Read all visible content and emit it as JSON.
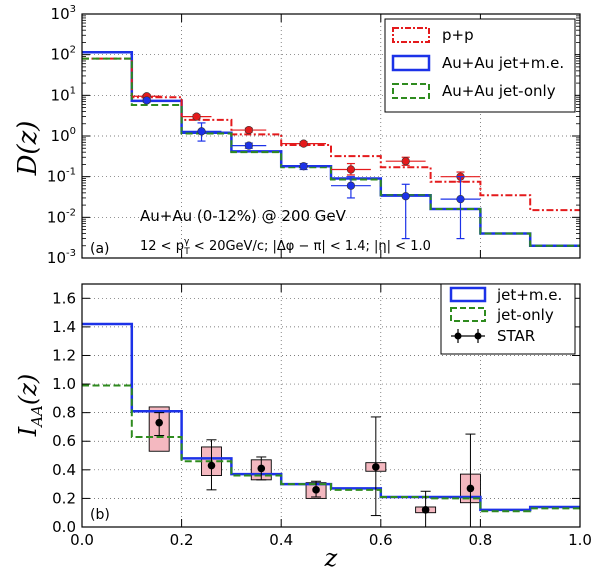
{
  "chart_data": [
    {
      "type": "line",
      "panel_tag": "(a)",
      "ylabel": "D(z)",
      "yscale": "log",
      "ylim": [
        0.001,
        1000
      ],
      "xlim": [
        0.0,
        1.0
      ],
      "y_tick_labels": [
        "10^-3",
        "10^-2",
        "10^-1",
        "10^0",
        "10^1",
        "10^2",
        "10^3"
      ],
      "grid": true,
      "legend_position": "top-right",
      "annotations": [
        "Au+Au (0-12%) @ 200 GeV",
        "12 < p_T^γ < 20GeV/c; |Δφ − π| < 1.4; |η| < 1.0"
      ],
      "bin_edges": [
        0.0,
        0.1,
        0.2,
        0.3,
        0.4,
        0.5,
        0.6,
        0.7,
        0.8,
        0.9,
        1.0
      ],
      "series": [
        {
          "name": "p+p",
          "style": "dash-dot",
          "color": "#e41a1c",
          "values": [
            80,
            9.0,
            2.5,
            1.1,
            0.6,
            0.32,
            0.17,
            0.075,
            0.035,
            0.015
          ]
        },
        {
          "name": "Au+Au jet+m.e.",
          "style": "solid",
          "color": "#1c32e8",
          "values": [
            115,
            7.3,
            1.2,
            0.42,
            0.18,
            0.09,
            0.035,
            0.016,
            0.004,
            0.002
          ]
        },
        {
          "name": "Au+Au jet-only",
          "style": "dashed",
          "color": "#2e8b1e",
          "values": [
            80,
            5.8,
            1.15,
            0.4,
            0.17,
            0.085,
            0.035,
            0.016,
            0.004,
            0.002
          ]
        }
      ],
      "points": [
        {
          "name": "p+p data",
          "color": "#e41a1c",
          "data": [
            {
              "x": 0.13,
              "y": 9.5,
              "xerr": 0.03,
              "ylo": 8.5,
              "yhi": 10.5
            },
            {
              "x": 0.23,
              "y": 3.0,
              "xerr": 0.03,
              "ylo": 2.7,
              "yhi": 3.3
            },
            {
              "x": 0.335,
              "y": 1.4,
              "xerr": 0.035,
              "ylo": 1.25,
              "yhi": 1.55
            },
            {
              "x": 0.445,
              "y": 0.65,
              "xerr": 0.045,
              "ylo": 0.58,
              "yhi": 0.72
            },
            {
              "x": 0.54,
              "y": 0.15,
              "xerr": 0.04,
              "ylo": 0.11,
              "yhi": 0.21
            },
            {
              "x": 0.65,
              "y": 0.24,
              "xerr": 0.04,
              "ylo": 0.19,
              "yhi": 0.3
            },
            {
              "x": 0.76,
              "y": 0.1,
              "xerr": 0.04,
              "ylo": 0.075,
              "yhi": 0.13
            }
          ]
        },
        {
          "name": "Au+Au data",
          "color": "#1c32e8",
          "data": [
            {
              "x": 0.13,
              "y": 7.5,
              "xerr": 0.03,
              "ylo": 6.8,
              "yhi": 8.3
            },
            {
              "x": 0.24,
              "y": 1.3,
              "xerr": 0.04,
              "ylo": 0.75,
              "yhi": 2.1
            },
            {
              "x": 0.335,
              "y": 0.58,
              "xerr": 0.035,
              "ylo": 0.5,
              "yhi": 0.67
            },
            {
              "x": 0.445,
              "y": 0.18,
              "xerr": 0.045,
              "ylo": 0.15,
              "yhi": 0.21
            },
            {
              "x": 0.54,
              "y": 0.06,
              "xerr": 0.04,
              "ylo": 0.03,
              "yhi": 0.1
            },
            {
              "x": 0.65,
              "y": 0.033,
              "xerr": 0.05,
              "ylo": 0.003,
              "yhi": 0.065
            },
            {
              "x": 0.76,
              "y": 0.028,
              "xerr": 0.04,
              "ylo": 0.003,
              "yhi": 0.1
            }
          ]
        }
      ]
    },
    {
      "type": "line",
      "panel_tag": "(b)",
      "ylabel": "I_AA(z)",
      "xlabel": "z",
      "yscale": "linear",
      "ylim": [
        0.0,
        1.7
      ],
      "xlim": [
        0.0,
        1.0
      ],
      "x_tick_labels": [
        "0.0",
        "0.2",
        "0.4",
        "0.6",
        "0.8",
        "1.0"
      ],
      "y_tick_labels": [
        "0.0",
        "0.2",
        "0.4",
        "0.6",
        "0.8",
        "1.0",
        "1.2",
        "1.4",
        "1.6"
      ],
      "grid": true,
      "legend_position": "top-right",
      "bin_edges": [
        0.0,
        0.1,
        0.2,
        0.3,
        0.4,
        0.5,
        0.6,
        0.7,
        0.8,
        0.9,
        1.0
      ],
      "series": [
        {
          "name": "jet+m.e.",
          "style": "solid",
          "color": "#1c32e8",
          "values": [
            1.42,
            0.81,
            0.48,
            0.37,
            0.3,
            0.27,
            0.21,
            0.21,
            0.12,
            0.14
          ]
        },
        {
          "name": "jet-only",
          "style": "dashed",
          "color": "#2e8b1e",
          "values": [
            0.99,
            0.63,
            0.46,
            0.36,
            0.3,
            0.26,
            0.21,
            0.2,
            0.11,
            0.13
          ]
        }
      ],
      "points": [
        {
          "name": "STAR",
          "color": "#000000",
          "data": [
            {
              "x": 0.155,
              "y": 0.73,
              "ylo": 0.64,
              "yhi": 0.8,
              "sys_lo": 0.53,
              "sys_hi": 0.84
            },
            {
              "x": 0.26,
              "y": 0.43,
              "ylo": 0.26,
              "yhi": 0.61,
              "sys_lo": 0.36,
              "sys_hi": 0.56
            },
            {
              "x": 0.36,
              "y": 0.41,
              "ylo": 0.33,
              "yhi": 0.49,
              "sys_lo": 0.33,
              "sys_hi": 0.47
            },
            {
              "x": 0.47,
              "y": 0.26,
              "ylo": 0.21,
              "yhi": 0.32,
              "sys_lo": 0.2,
              "sys_hi": 0.31
            },
            {
              "x": 0.59,
              "y": 0.42,
              "ylo": 0.08,
              "yhi": 0.77,
              "sys_lo": 0.39,
              "sys_hi": 0.45
            },
            {
              "x": 0.69,
              "y": 0.12,
              "ylo": 0.0,
              "yhi": 0.25,
              "sys_lo": 0.1,
              "sys_hi": 0.14
            },
            {
              "x": 0.78,
              "y": 0.27,
              "ylo": 0.0,
              "yhi": 0.65,
              "sys_lo": 0.17,
              "sys_hi": 0.37
            }
          ]
        }
      ]
    }
  ]
}
